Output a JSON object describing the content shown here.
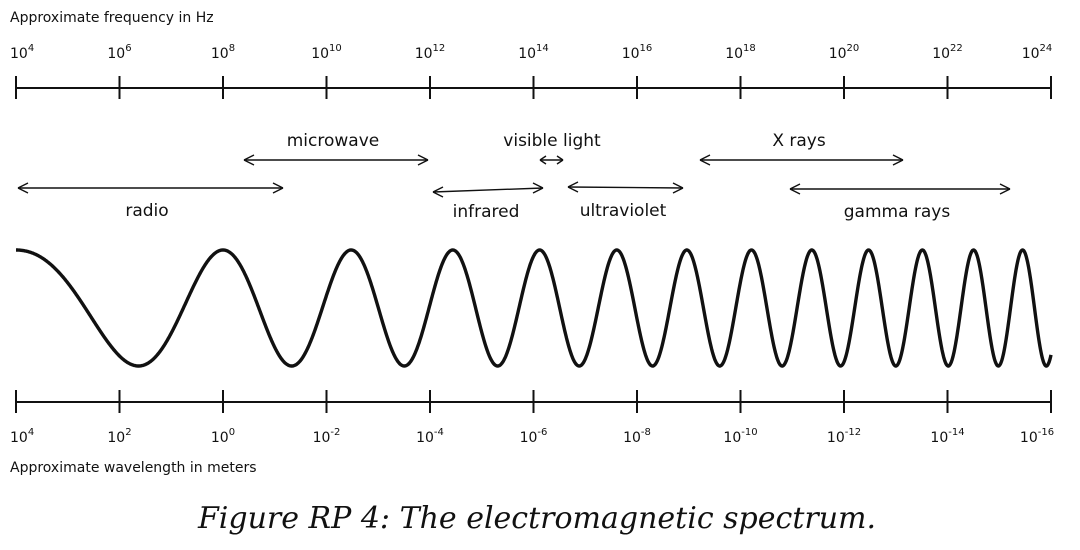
{
  "frequency_axis": {
    "title": "Approximate frequency in Hz",
    "ticks": [
      {
        "base": "10",
        "exp": "4"
      },
      {
        "base": "10",
        "exp": "6"
      },
      {
        "base": "10",
        "exp": "8"
      },
      {
        "base": "10",
        "exp": "10"
      },
      {
        "base": "10",
        "exp": "12"
      },
      {
        "base": "10",
        "exp": "14"
      },
      {
        "base": "10",
        "exp": "16"
      },
      {
        "base": "10",
        "exp": "18"
      },
      {
        "base": "10",
        "exp": "20"
      },
      {
        "base": "10",
        "exp": "22"
      },
      {
        "base": "10",
        "exp": "24"
      }
    ]
  },
  "wavelength_axis": {
    "title": "Approximate wavelength in meters",
    "ticks": [
      {
        "base": "10",
        "exp": "4"
      },
      {
        "base": "10",
        "exp": "2"
      },
      {
        "base": "10",
        "exp": "0"
      },
      {
        "base": "10",
        "exp": "-2"
      },
      {
        "base": "10",
        "exp": "-4"
      },
      {
        "base": "10",
        "exp": "-6"
      },
      {
        "base": "10",
        "exp": "-8"
      },
      {
        "base": "10",
        "exp": "-10"
      },
      {
        "base": "10",
        "exp": "-12"
      },
      {
        "base": "10",
        "exp": "-14"
      },
      {
        "base": "10",
        "exp": "-16"
      }
    ]
  },
  "bands": {
    "microwave": "microwave",
    "visible": "visible light",
    "xrays": "X rays",
    "radio": "radio",
    "infrared": "infrared",
    "ultraviolet": "ultraviolet",
    "gamma": "gamma rays"
  },
  "caption": "Figure RP 4: The electromagnetic spectrum."
}
